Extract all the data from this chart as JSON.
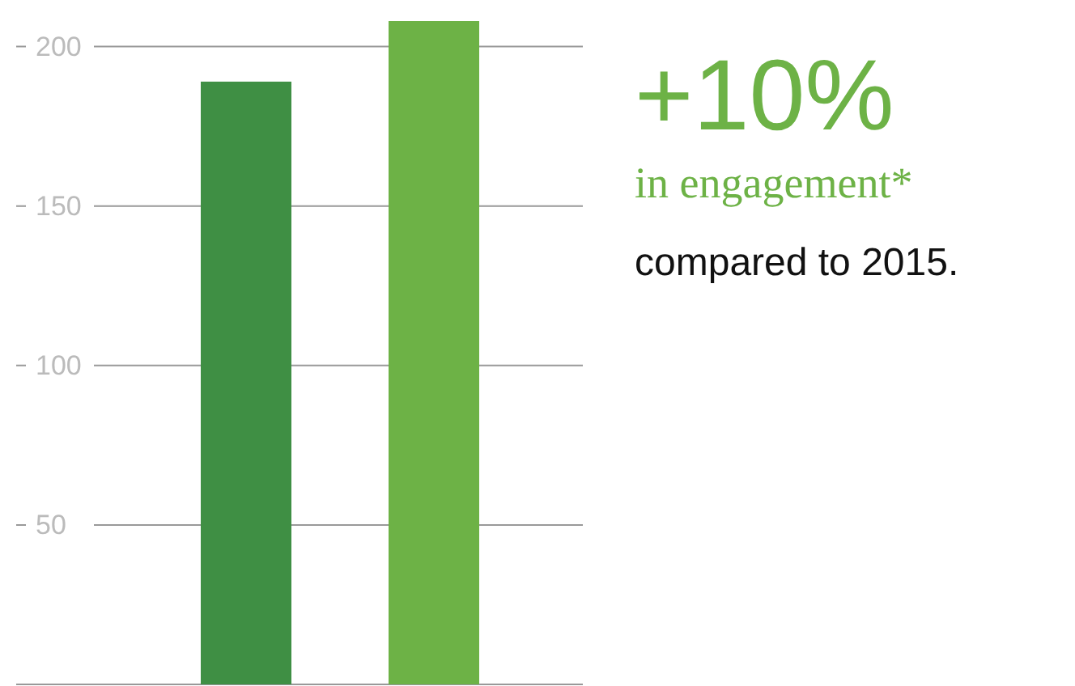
{
  "chart_data": {
    "type": "bar",
    "categories": [
      null,
      null
    ],
    "values": [
      189,
      208
    ],
    "colors": [
      "#3f8f44",
      "#6db246"
    ],
    "ylim": [
      0,
      208
    ],
    "yticks": [
      50,
      100,
      150,
      200
    ],
    "grid": "y",
    "annotations": [
      "+10%",
      "in engagement*",
      "compared to 2015."
    ]
  }
}
